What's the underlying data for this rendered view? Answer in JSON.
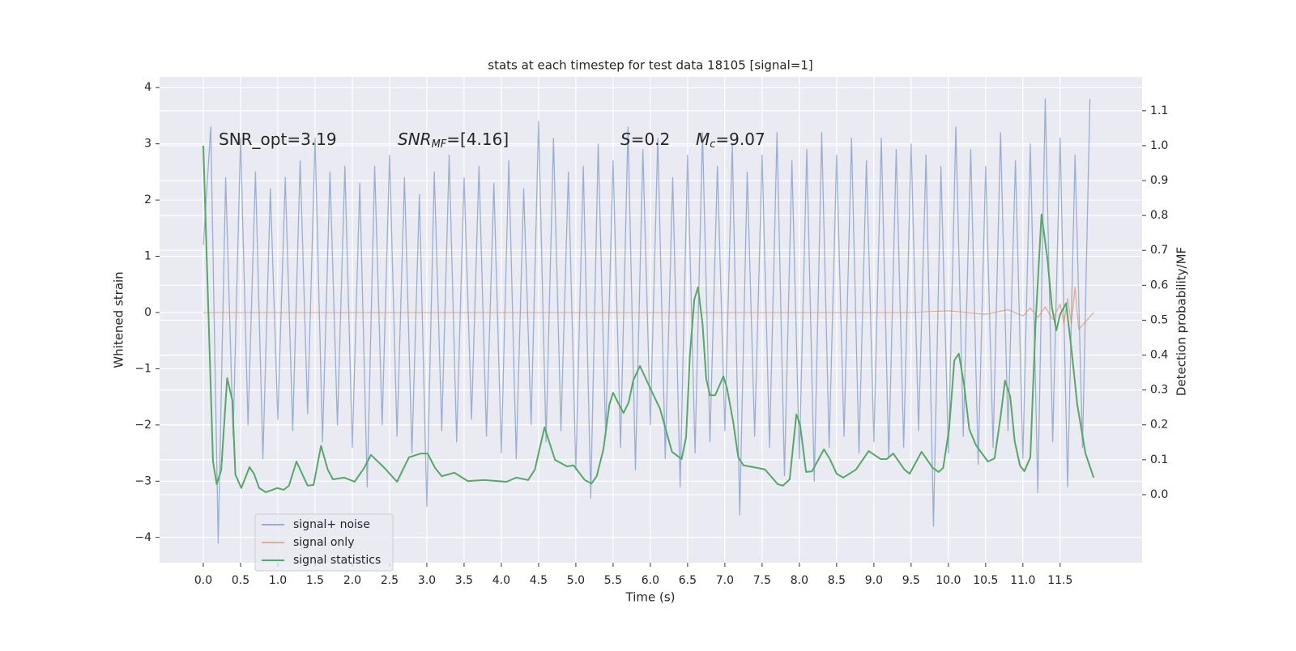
{
  "chart_data": {
    "type": "line",
    "title": "stats at each timestep for test data 18105 [signal=1]",
    "xlabel": "Time (s)",
    "ylabel": "Whitened strain",
    "y2label": "Detection probability/MF",
    "annotations": [
      {
        "main": "SNR_opt=3.19",
        "italic": false
      },
      {
        "main": "SNR",
        "sub": "MF",
        "rest": "=[4.16]",
        "italic": true
      },
      {
        "main": "S",
        "rest": "=0.2",
        "italic": true
      },
      {
        "main": "M",
        "sub": "c",
        "rest": "=9.07",
        "italic": true
      }
    ],
    "xlim": [
      -0.587,
      12.6
    ],
    "ylim": [
      -4.45,
      4.19
    ],
    "y2lim": [
      -0.195,
      1.197
    ],
    "xticks": [
      {
        "value": 0,
        "label": "0.0"
      },
      0.5,
      {
        "value": 1,
        "label": "1.0"
      },
      1.5,
      {
        "value": 2,
        "label": "2.0"
      },
      2.5,
      {
        "value": 3,
        "label": "3.0"
      },
      3.5,
      {
        "value": 4,
        "label": "4.0"
      },
      4.5,
      {
        "value": 5,
        "label": "5.0"
      },
      5.5,
      {
        "value": 6,
        "label": "6.0"
      },
      6.5,
      {
        "value": 7,
        "label": "7.0"
      },
      7.5,
      {
        "value": 8,
        "label": "8.0"
      },
      8.5,
      {
        "value": 9,
        "label": "9.0"
      },
      9.5,
      {
        "value": 10,
        "label": "10.0"
      },
      10.5,
      {
        "value": 11,
        "label": "11.0"
      },
      11.5
    ],
    "yticks": [
      {
        "value": -4,
        "label": "−4"
      },
      {
        "value": -3,
        "label": "−3"
      },
      {
        "value": -2,
        "label": "−2"
      },
      {
        "value": -1,
        "label": "−1"
      },
      0,
      1,
      2,
      3,
      4
    ],
    "y2ticks": [
      {
        "value": 0,
        "label": "0.0"
      },
      0.1,
      0.2,
      0.3,
      0.4,
      0.5,
      0.6,
      0.7,
      0.8,
      0.9,
      {
        "value": 1,
        "label": "1.0"
      },
      1.1
    ],
    "grid": true,
    "legend": "lower left",
    "series": [
      {
        "name": "signal+ noise",
        "color": "#4c72b0",
        "opacity": 0.5,
        "x": [
          0,
          0.1,
          0.2,
          0.3,
          0.4,
          0.5,
          0.6,
          0.7,
          0.8,
          0.9,
          1,
          1.1,
          1.2,
          1.3,
          1.4,
          1.5,
          1.6,
          1.7,
          1.8,
          1.9,
          2,
          2.1,
          2.2,
          2.3,
          2.4,
          2.5,
          2.6,
          2.7,
          2.8,
          2.9,
          3,
          3.1,
          3.2,
          3.3,
          3.4,
          3.5,
          3.6,
          3.7,
          3.8,
          3.9,
          4,
          4.1,
          4.2,
          4.3,
          4.4,
          4.5,
          4.6,
          4.7,
          4.8,
          4.9,
          5,
          5.1,
          5.2,
          5.3,
          5.4,
          5.5,
          5.6,
          5.7,
          5.8,
          5.9,
          6,
          6.1,
          6.2,
          6.3,
          6.4,
          6.5,
          6.6,
          6.7,
          6.8,
          6.9,
          7,
          7.1,
          7.2,
          7.3,
          7.4,
          7.5,
          7.6,
          7.7,
          7.8,
          7.9,
          8,
          8.1,
          8.2,
          8.3,
          8.4,
          8.5,
          8.6,
          8.7,
          8.8,
          8.9,
          9,
          9.1,
          9.2,
          9.3,
          9.4,
          9.5,
          9.6,
          9.7,
          9.8,
          9.9,
          10,
          10.1,
          10.2,
          10.3,
          10.4,
          10.5,
          10.6,
          10.7,
          10.8,
          10.9,
          11,
          11.1,
          11.2,
          11.3,
          11.4,
          11.5,
          11.6,
          11.7,
          11.8,
          11.9
        ],
        "values": [
          1.2,
          3.3,
          -4.1,
          2.4,
          -2.2,
          3.1,
          -2.0,
          2.5,
          -2.6,
          2.2,
          -1.9,
          2.4,
          -2.1,
          2.7,
          -1.8,
          3.1,
          -2.3,
          2.5,
          -2.0,
          2.6,
          -2.4,
          2.3,
          -3.1,
          2.6,
          -2.0,
          2.8,
          -2.2,
          2.4,
          -2.5,
          2.1,
          -3.45,
          2.5,
          -2.1,
          2.8,
          -2.3,
          2.4,
          -1.9,
          2.6,
          -2.2,
          2.3,
          -2.5,
          2.7,
          -2.6,
          2.2,
          -2.0,
          3.4,
          -2.3,
          3.1,
          -2.1,
          2.5,
          -2.8,
          2.6,
          -3.3,
          3.0,
          -2.2,
          2.7,
          -2.4,
          3.3,
          -2.8,
          2.9,
          -2.0,
          3.1,
          -2.6,
          2.4,
          -3.1,
          2.8,
          -2.5,
          3.2,
          -2.3,
          2.6,
          -2.1,
          3.0,
          -3.6,
          2.5,
          -2.2,
          2.8,
          -2.4,
          3.2,
          -2.9,
          2.7,
          -2.6,
          2.9,
          -3.0,
          3.2,
          -2.4,
          2.8,
          -2.2,
          3.1,
          -2.5,
          2.7,
          -2.3,
          3.1,
          -2.6,
          2.9,
          -2.4,
          3.0,
          -2.1,
          2.8,
          -3.8,
          2.6,
          -2.5,
          3.3,
          -2.2,
          2.9,
          -2.7,
          2.6,
          -2.4,
          3.2,
          -2.1,
          2.7,
          -2.6,
          3.0,
          -3.2,
          3.8,
          -2.3,
          3.1,
          -3.1,
          2.8,
          -2.4,
          3.8
        ]
      },
      {
        "name": "signal only",
        "color": "#dd8452",
        "opacity": 0.6,
        "x": [
          0,
          9.5,
          10,
          10.5,
          10.8,
          11,
          11.1,
          11.2,
          11.3,
          11.4,
          11.5,
          11.55,
          11.6,
          11.65,
          11.7,
          11.75,
          11.95
        ],
        "values": [
          0,
          0,
          0.03,
          -0.03,
          0.05,
          -0.06,
          0.08,
          -0.09,
          0.1,
          -0.12,
          0.15,
          -0.2,
          0.25,
          -0.2,
          0.45,
          -0.3,
          0
        ]
      },
      {
        "name": "signal statistics",
        "color": "#55a868",
        "opacity": 1,
        "axis": "y2",
        "x": [
          0,
          0.13,
          0.18,
          0.24,
          0.32,
          0.39,
          0.43,
          0.51,
          0.62,
          0.68,
          0.75,
          0.84,
          0.99,
          1.08,
          1.15,
          1.25,
          1.4,
          1.48,
          1.58,
          1.67,
          1.74,
          1.89,
          2.03,
          2.16,
          2.25,
          2.43,
          2.6,
          2.76,
          2.92,
          3.01,
          3.11,
          3.2,
          3.37,
          3.55,
          3.77,
          4.07,
          4.2,
          4.36,
          4.45,
          4.58,
          4.72,
          4.88,
          4.97,
          5.12,
          5.21,
          5.28,
          5.37,
          5.45,
          5.5,
          5.58,
          5.64,
          5.71,
          5.77,
          5.86,
          5.99,
          6.13,
          6.29,
          6.42,
          6.48,
          6.53,
          6.59,
          6.64,
          6.7,
          6.75,
          6.8,
          6.87,
          6.98,
          7.03,
          7.11,
          7.18,
          7.25,
          7.43,
          7.54,
          7.71,
          7.78,
          7.87,
          7.96,
          8.01,
          8.09,
          8.17,
          8.33,
          8.41,
          8.5,
          8.59,
          8.76,
          8.93,
          9.09,
          9.17,
          9.26,
          9.41,
          9.48,
          9.64,
          9.79,
          9.87,
          9.93,
          10.01,
          10.08,
          10.14,
          10.21,
          10.28,
          10.37,
          10.53,
          10.62,
          10.7,
          10.76,
          10.83,
          10.89,
          10.96,
          11.02,
          11.1,
          11.17,
          11.25,
          11.33,
          11.39,
          11.45,
          11.5,
          11.58,
          11.65,
          11.73,
          11.84,
          11.95
        ],
        "values": [
          1.0,
          0.095,
          0.03,
          0.07,
          0.334,
          0.27,
          0.058,
          0.019,
          0.079,
          0.06,
          0.019,
          0.007,
          0.019,
          0.014,
          0.026,
          0.095,
          0.026,
          0.028,
          0.14,
          0.072,
          0.044,
          0.049,
          0.037,
          0.077,
          0.114,
          0.077,
          0.037,
          0.107,
          0.118,
          0.118,
          0.077,
          0.053,
          0.063,
          0.039,
          0.042,
          0.037,
          0.049,
          0.042,
          0.072,
          0.193,
          0.1,
          0.081,
          0.084,
          0.042,
          0.032,
          0.053,
          0.13,
          0.258,
          0.292,
          0.258,
          0.234,
          0.265,
          0.327,
          0.369,
          0.309,
          0.246,
          0.123,
          0.102,
          0.165,
          0.397,
          0.559,
          0.594,
          0.49,
          0.332,
          0.285,
          0.285,
          0.339,
          0.304,
          0.211,
          0.107,
          0.084,
          0.077,
          0.072,
          0.03,
          0.026,
          0.044,
          0.23,
          0.2,
          0.065,
          0.067,
          0.13,
          0.102,
          0.06,
          0.049,
          0.072,
          0.125,
          0.102,
          0.102,
          0.118,
          0.072,
          0.06,
          0.123,
          0.077,
          0.065,
          0.077,
          0.188,
          0.385,
          0.404,
          0.316,
          0.188,
          0.142,
          0.095,
          0.104,
          0.223,
          0.327,
          0.281,
          0.153,
          0.084,
          0.067,
          0.107,
          0.49,
          0.803,
          0.675,
          0.536,
          0.471,
          0.517,
          0.548,
          0.42,
          0.258,
          0.118,
          0.049
        ]
      }
    ]
  }
}
